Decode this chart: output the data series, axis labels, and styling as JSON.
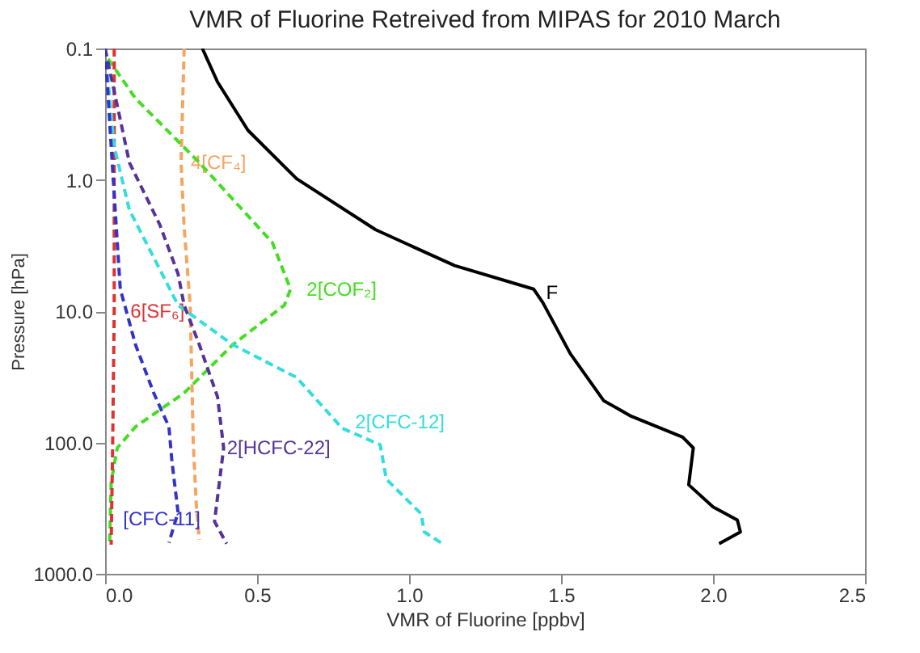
{
  "chart_data": {
    "type": "line",
    "title": "VMR of Fluorine Retreived from MIPAS for 2010 March",
    "xlabel": "VMR of Fluorine [ppbv]",
    "ylabel": "Pressure [hPa]",
    "xlim": [
      0,
      2.5
    ],
    "xticks": [
      {
        "value": 0,
        "label": "0.0"
      },
      {
        "value": 0.5,
        "label": "0.5"
      },
      {
        "value": 1,
        "label": "1.0"
      },
      {
        "value": 1.5,
        "label": "1.5"
      },
      {
        "value": 2,
        "label": "2.0"
      },
      {
        "value": 2.5,
        "label": "2.5"
      }
    ],
    "ylim": [
      1000,
      0.1
    ],
    "yticks": [
      {
        "value": 0.1,
        "label": "0.1"
      },
      {
        "value": 1,
        "label": "1.0"
      },
      {
        "value": 10,
        "label": "10.0"
      },
      {
        "value": 100,
        "label": "100.0"
      },
      {
        "value": 1000,
        "label": "1000.0"
      }
    ],
    "log": "y",
    "grid": false,
    "marker": "none",
    "series": [
      {
        "name": "F",
        "color": "#000000",
        "line_style": "solid",
        "x": [
          0.32,
          0.37,
          0.47,
          0.63,
          0.89,
          1.15,
          1.41,
          1.44,
          1.53,
          1.64,
          1.73,
          1.9,
          1.935,
          1.92,
          2.0,
          2.08,
          2.09,
          2.02
        ],
        "values": [
          0.1,
          0.18,
          0.42,
          0.98,
          2.4,
          4.5,
          6.8,
          8.6,
          21,
          48,
          63,
          91,
          110,
          210,
          310,
          390,
          480,
          590
        ]
      },
      {
        "name": "4[CF₄]",
        "color": "#f5a560",
        "line_style": "dashed",
        "x": [
          0.26,
          0.25,
          0.26,
          0.28,
          0.29,
          0.3,
          0.31
        ],
        "values": [
          0.1,
          0.74,
          2.3,
          9,
          100,
          300,
          550
        ]
      },
      {
        "name": "2[COF₂]",
        "color": "#44dd22",
        "line_style": "dashed",
        "x": [
          0.01,
          0.1,
          0.31,
          0.55,
          0.61,
          0.59,
          0.42,
          0.26,
          0.1,
          0.04,
          0.02,
          0.015
        ],
        "values": [
          0.12,
          0.24,
          0.74,
          3,
          6.8,
          9,
          18,
          42,
          76,
          110,
          200,
          580
        ]
      },
      {
        "name": "6[SF₆]",
        "color": "#dd3333",
        "line_style": "dashed",
        "x": [
          0.03,
          0.03,
          0.025,
          0.02
        ],
        "values": [
          0.1,
          10,
          100,
          600
        ]
      },
      {
        "name": "2[CFC-12]",
        "color": "#33dddd",
        "line_style": "dashed",
        "x": [
          0.0,
          0.03,
          0.08,
          0.16,
          0.24,
          0.42,
          0.63,
          0.78,
          0.905,
          0.925,
          1.04,
          1.05,
          1.11
        ],
        "values": [
          0.1,
          0.56,
          1.7,
          3.9,
          9,
          18,
          32,
          78,
          104,
          190,
          350,
          480,
          590
        ]
      },
      {
        "name": "2[HCFC-22]",
        "color": "#553399",
        "line_style": "dashed",
        "x": [
          0.0,
          0.08,
          0.18,
          0.24,
          0.26,
          0.31,
          0.37,
          0.39,
          0.36,
          0.4
        ],
        "values": [
          0.1,
          0.74,
          2.2,
          5.2,
          9,
          18,
          45,
          110,
          400,
          590
        ]
      },
      {
        "name": "[CFC-11]",
        "color": "#3333cc",
        "line_style": "dashed",
        "x": [
          0.0,
          0.03,
          0.05,
          0.1,
          0.16,
          0.21,
          0.22,
          0.24,
          0.21
        ],
        "values": [
          0.1,
          1.3,
          6.8,
          18,
          42,
          76,
          140,
          340,
          580
        ]
      }
    ]
  }
}
